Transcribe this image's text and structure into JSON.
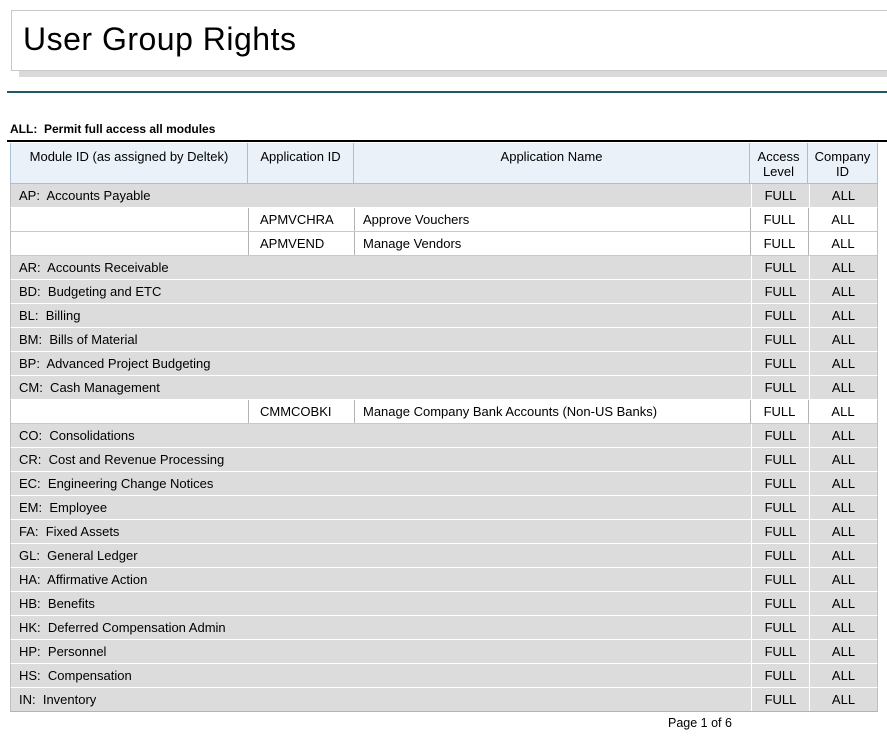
{
  "page": {
    "title": "User Group Rights",
    "legend_label": "ALL:",
    "legend_text": "Permit full access all modules",
    "footer": "Page 1 of 6"
  },
  "colors": {
    "accent_divider": "#215968",
    "header_background": "#eaf1f8",
    "header_border": "#a7bfd9",
    "module_row_background": "#dcdcdc"
  },
  "table": {
    "headers": {
      "module": "Module ID (as assigned by Deltek)",
      "app_id": "Application ID",
      "app_name": "Application Name",
      "access": "Access Level",
      "company": "Company ID"
    },
    "rows": [
      {
        "type": "module",
        "label": "AP:  Accounts Payable",
        "access": "FULL",
        "company": "ALL"
      },
      {
        "type": "app",
        "app_id": "APMVCHRA",
        "app_name": "Approve Vouchers",
        "access": "FULL",
        "company": "ALL"
      },
      {
        "type": "app",
        "app_id": "APMVEND",
        "app_name": "Manage Vendors",
        "access": "FULL",
        "company": "ALL"
      },
      {
        "type": "module",
        "label": "AR:  Accounts Receivable",
        "access": "FULL",
        "company": "ALL"
      },
      {
        "type": "module",
        "label": "BD:  Budgeting and ETC",
        "access": "FULL",
        "company": "ALL"
      },
      {
        "type": "module",
        "label": "BL:  Billing",
        "access": "FULL",
        "company": "ALL"
      },
      {
        "type": "module",
        "label": "BM:  Bills of Material",
        "access": "FULL",
        "company": "ALL"
      },
      {
        "type": "module",
        "label": "BP:  Advanced Project Budgeting",
        "access": "FULL",
        "company": "ALL"
      },
      {
        "type": "module",
        "label": "CM:  Cash Management",
        "access": "FULL",
        "company": "ALL"
      },
      {
        "type": "app",
        "app_id": "CMMCOBKI",
        "app_name": "Manage Company Bank Accounts (Non-US Banks)",
        "access": "FULL",
        "company": "ALL"
      },
      {
        "type": "module",
        "label": "CO:  Consolidations",
        "access": "FULL",
        "company": "ALL"
      },
      {
        "type": "module",
        "label": "CR:  Cost and Revenue Processing",
        "access": "FULL",
        "company": "ALL"
      },
      {
        "type": "module",
        "label": "EC:  Engineering Change Notices",
        "access": "FULL",
        "company": "ALL"
      },
      {
        "type": "module",
        "label": "EM:  Employee",
        "access": "FULL",
        "company": "ALL"
      },
      {
        "type": "module",
        "label": "FA:  Fixed Assets",
        "access": "FULL",
        "company": "ALL"
      },
      {
        "type": "module",
        "label": "GL:  General Ledger",
        "access": "FULL",
        "company": "ALL"
      },
      {
        "type": "module",
        "label": "HA:  Affirmative Action",
        "access": "FULL",
        "company": "ALL"
      },
      {
        "type": "module",
        "label": "HB:  Benefits",
        "access": "FULL",
        "company": "ALL"
      },
      {
        "type": "module",
        "label": "HK:  Deferred Compensation Admin",
        "access": "FULL",
        "company": "ALL"
      },
      {
        "type": "module",
        "label": "HP:  Personnel",
        "access": "FULL",
        "company": "ALL"
      },
      {
        "type": "module",
        "label": "HS:  Compensation",
        "access": "FULL",
        "company": "ALL"
      },
      {
        "type": "module",
        "label": "IN:  Inventory",
        "access": "FULL",
        "company": "ALL"
      }
    ]
  }
}
